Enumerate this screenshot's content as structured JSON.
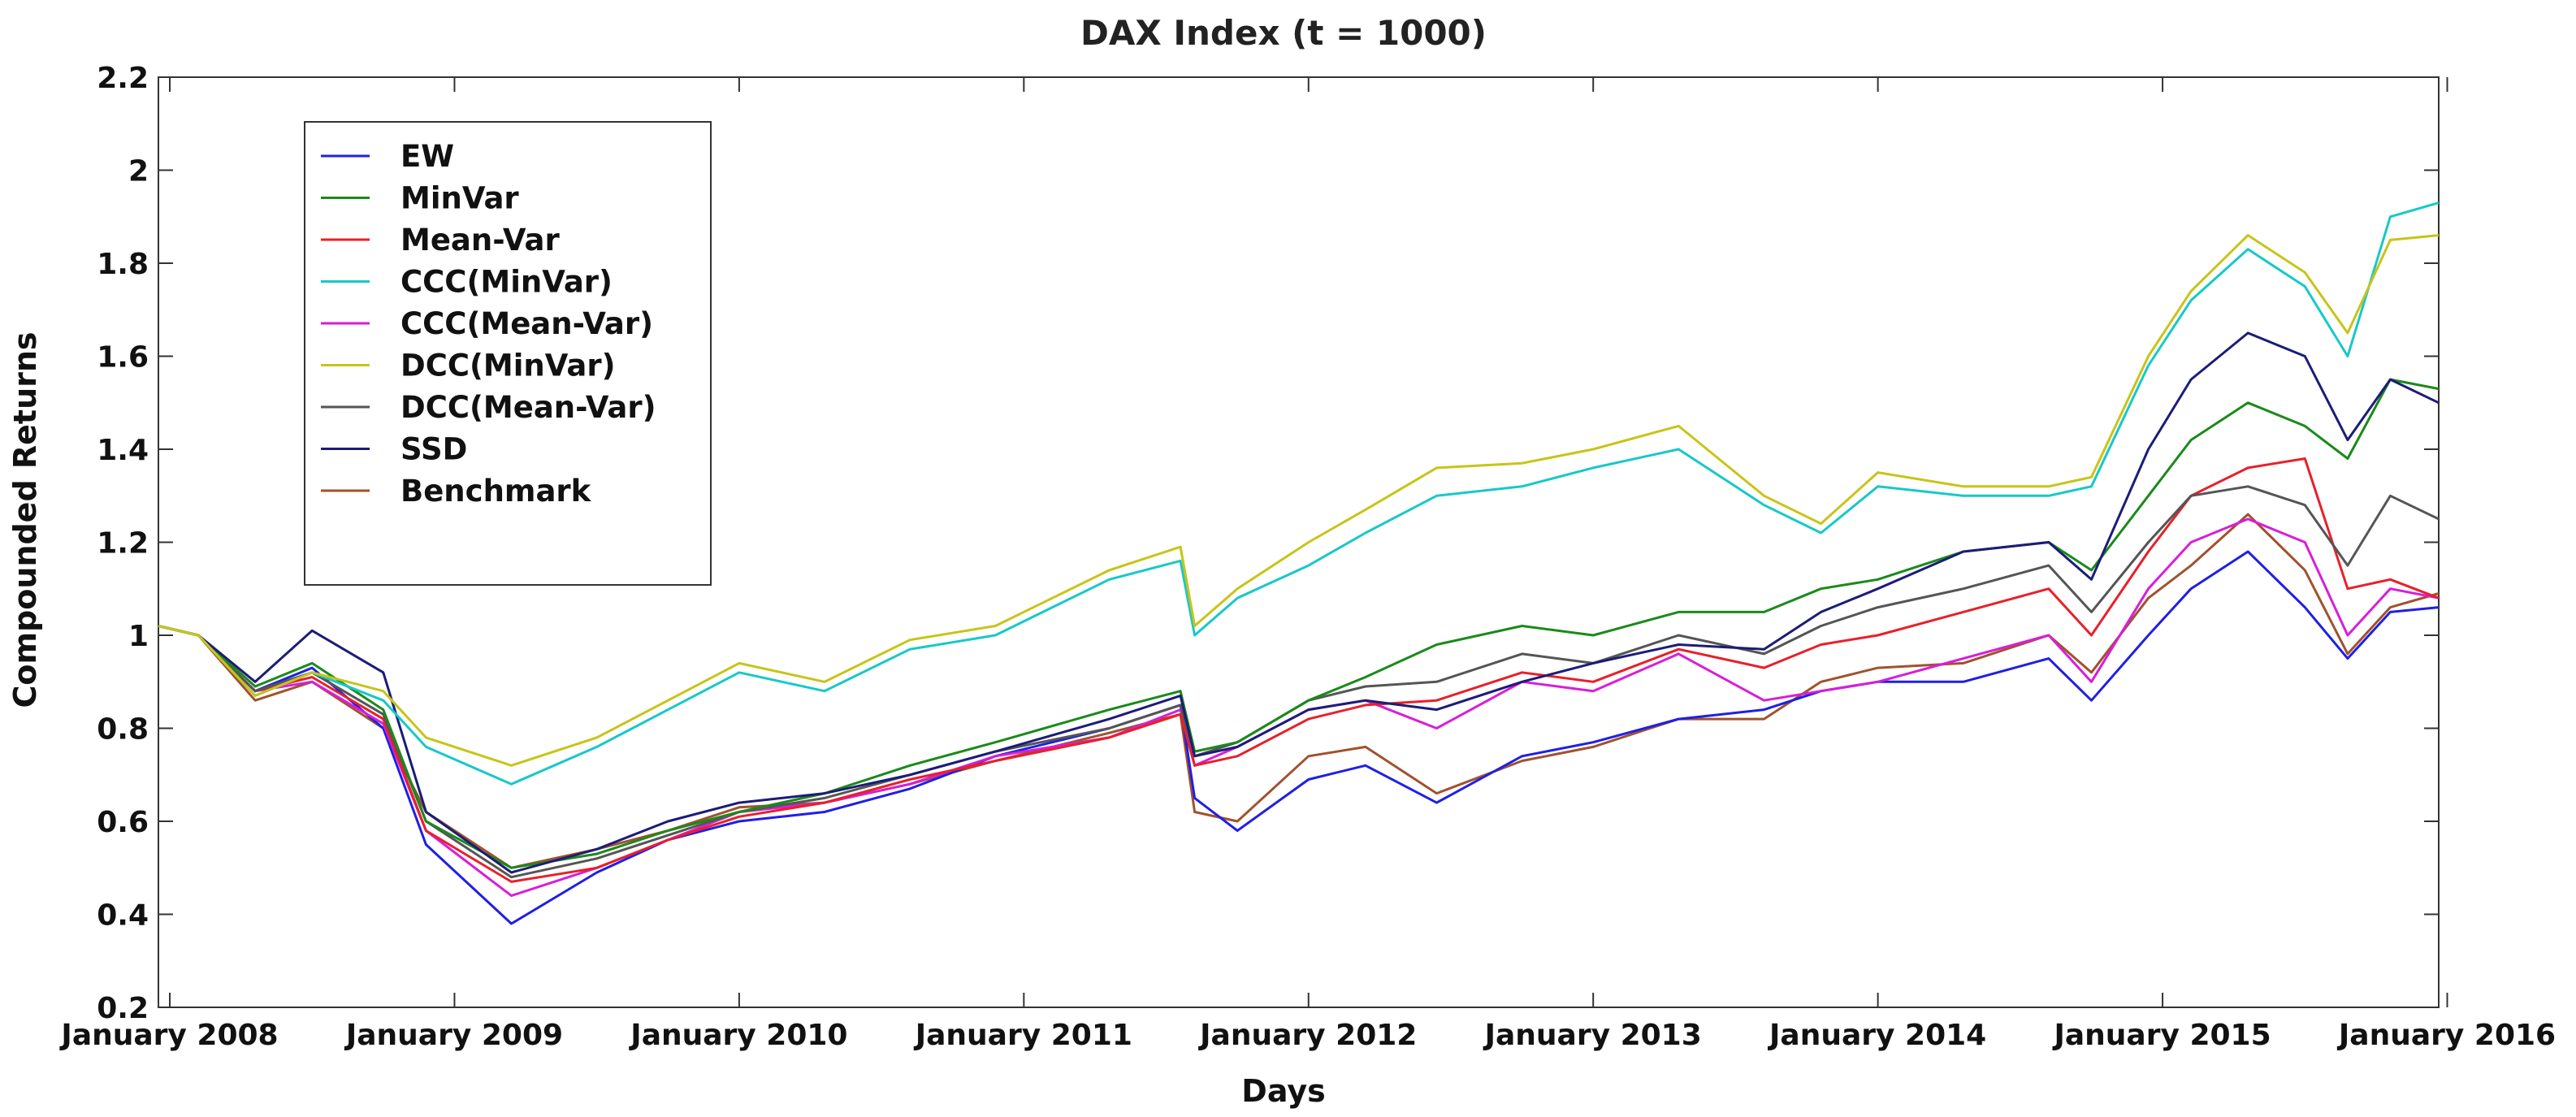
{
  "chart_data": {
    "type": "line",
    "title": "DAX Index (t = 1000)",
    "xlabel": "Days",
    "ylabel": "Compounded Returns",
    "ylim": [
      0.2,
      2.2
    ],
    "yticks": [
      "0.2",
      "0.4",
      "0.6",
      "0.8",
      "1",
      "1.2",
      "1.4",
      "1.6",
      "1.8",
      "2",
      "2.2"
    ],
    "xlim": [
      2007.96,
      2015.97
    ],
    "xticks": [
      {
        "label": "January 2008",
        "x": 2008.0
      },
      {
        "label": "January 2009",
        "x": 2009.0
      },
      {
        "label": "January 2010",
        "x": 2010.0
      },
      {
        "label": "January 2011",
        "x": 2011.0
      },
      {
        "label": "January 2012",
        "x": 2012.0
      },
      {
        "label": "January 2013",
        "x": 2013.0
      },
      {
        "label": "January 2014",
        "x": 2014.0
      },
      {
        "label": "January 2015",
        "x": 2015.0
      },
      {
        "label": "January 2016",
        "x": 2016.0
      }
    ],
    "grid": false,
    "legend_position": "top-left",
    "x": [
      2007.96,
      2008.1,
      2008.3,
      2008.5,
      2008.75,
      2008.9,
      2009.2,
      2009.5,
      2009.75,
      2010.0,
      2010.3,
      2010.6,
      2010.9,
      2011.3,
      2011.55,
      2011.6,
      2011.75,
      2012.0,
      2012.2,
      2012.45,
      2012.75,
      2013.0,
      2013.3,
      2013.6,
      2013.8,
      2014.0,
      2014.3,
      2014.6,
      2014.75,
      2014.95,
      2015.1,
      2015.3,
      2015.5,
      2015.65,
      2015.8,
      2015.97
    ],
    "series": [
      {
        "name": "EW",
        "color": "#1f1fe6",
        "values": [
          1.02,
          1.0,
          0.88,
          0.93,
          0.8,
          0.55,
          0.38,
          0.49,
          0.56,
          0.6,
          0.62,
          0.67,
          0.74,
          0.8,
          0.85,
          0.65,
          0.58,
          0.69,
          0.72,
          0.64,
          0.74,
          0.77,
          0.82,
          0.84,
          0.88,
          0.9,
          0.9,
          0.95,
          0.86,
          1.0,
          1.1,
          1.18,
          1.06,
          0.95,
          1.05,
          1.06
        ]
      },
      {
        "name": "MinVar",
        "color": "#1a8a1a",
        "values": [
          1.02,
          1.0,
          0.89,
          0.94,
          0.84,
          0.6,
          0.5,
          0.53,
          0.58,
          0.62,
          0.66,
          0.72,
          0.77,
          0.84,
          0.88,
          0.75,
          0.77,
          0.86,
          0.91,
          0.98,
          1.02,
          1.0,
          1.05,
          1.05,
          1.1,
          1.12,
          1.18,
          1.2,
          1.14,
          1.3,
          1.42,
          1.5,
          1.45,
          1.38,
          1.55,
          1.53
        ]
      },
      {
        "name": "Mean-Var",
        "color": "#e8202a",
        "values": [
          1.02,
          1.0,
          0.88,
          0.91,
          0.82,
          0.58,
          0.47,
          0.5,
          0.56,
          0.61,
          0.64,
          0.69,
          0.73,
          0.78,
          0.83,
          0.72,
          0.74,
          0.82,
          0.85,
          0.86,
          0.92,
          0.9,
          0.97,
          0.93,
          0.98,
          1.0,
          1.05,
          1.1,
          1.0,
          1.18,
          1.3,
          1.36,
          1.38,
          1.1,
          1.12,
          1.08
        ]
      },
      {
        "name": "CCC(MinVar)",
        "color": "#18c8c8",
        "values": [
          1.02,
          1.0,
          0.87,
          0.92,
          0.86,
          0.76,
          0.68,
          0.76,
          0.84,
          0.92,
          0.88,
          0.97,
          1.0,
          1.12,
          1.16,
          1.0,
          1.08,
          1.15,
          1.22,
          1.3,
          1.32,
          1.36,
          1.4,
          1.28,
          1.22,
          1.32,
          1.3,
          1.3,
          1.32,
          1.58,
          1.72,
          1.83,
          1.75,
          1.6,
          1.9,
          1.93
        ]
      },
      {
        "name": "CCC(Mean-Var)",
        "color": "#d81ed8",
        "values": [
          1.02,
          1.0,
          0.88,
          0.9,
          0.81,
          0.58,
          0.44,
          0.5,
          0.56,
          0.62,
          0.64,
          0.68,
          0.74,
          0.78,
          0.84,
          0.72,
          0.76,
          0.84,
          0.86,
          0.8,
          0.9,
          0.88,
          0.96,
          0.86,
          0.88,
          0.9,
          0.95,
          1.0,
          0.9,
          1.1,
          1.2,
          1.25,
          1.2,
          1.0,
          1.1,
          1.08
        ]
      },
      {
        "name": "DCC(MinVar)",
        "color": "#c8c418",
        "values": [
          1.02,
          1.0,
          0.87,
          0.92,
          0.88,
          0.78,
          0.72,
          0.78,
          0.86,
          0.94,
          0.9,
          0.99,
          1.02,
          1.14,
          1.19,
          1.02,
          1.1,
          1.2,
          1.27,
          1.36,
          1.37,
          1.4,
          1.45,
          1.3,
          1.24,
          1.35,
          1.32,
          1.32,
          1.34,
          1.6,
          1.74,
          1.86,
          1.78,
          1.65,
          1.85,
          1.86
        ]
      },
      {
        "name": "DCC(Mean-Var)",
        "color": "#555555",
        "values": [
          1.02,
          1.0,
          0.88,
          0.92,
          0.83,
          0.6,
          0.48,
          0.52,
          0.57,
          0.62,
          0.65,
          0.7,
          0.75,
          0.8,
          0.85,
          0.74,
          0.77,
          0.86,
          0.89,
          0.9,
          0.96,
          0.94,
          1.0,
          0.96,
          1.02,
          1.06,
          1.1,
          1.15,
          1.05,
          1.2,
          1.3,
          1.32,
          1.28,
          1.15,
          1.3,
          1.25
        ]
      },
      {
        "name": "SSD",
        "color": "#1c1c78",
        "values": [
          1.02,
          1.0,
          0.9,
          1.01,
          0.92,
          0.62,
          0.49,
          0.54,
          0.6,
          0.64,
          0.66,
          0.7,
          0.75,
          0.82,
          0.87,
          0.74,
          0.76,
          0.84,
          0.86,
          0.84,
          0.9,
          0.94,
          0.98,
          0.97,
          1.05,
          1.1,
          1.18,
          1.2,
          1.12,
          1.4,
          1.55,
          1.65,
          1.6,
          1.42,
          1.55,
          1.5
        ]
      },
      {
        "name": "Benchmark",
        "color": "#a0522d",
        "values": [
          1.02,
          1.0,
          0.86,
          0.9,
          0.8,
          0.62,
          0.5,
          0.54,
          0.58,
          0.63,
          0.64,
          0.68,
          0.73,
          0.79,
          0.83,
          0.62,
          0.6,
          0.74,
          0.76,
          0.66,
          0.73,
          0.76,
          0.82,
          0.82,
          0.9,
          0.93,
          0.94,
          1.0,
          0.92,
          1.08,
          1.15,
          1.26,
          1.14,
          0.96,
          1.06,
          1.09
        ]
      }
    ]
  }
}
